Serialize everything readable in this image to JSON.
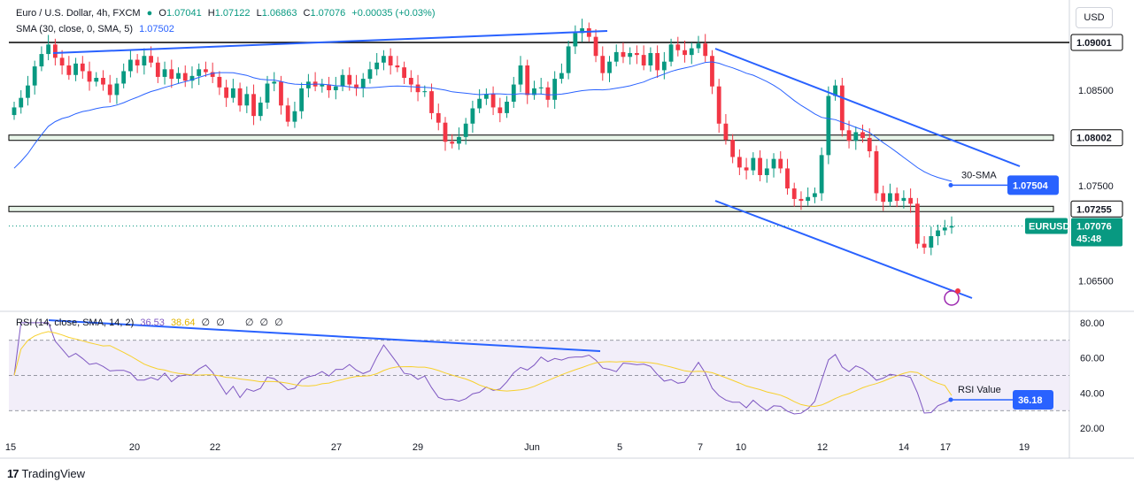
{
  "header": {
    "symbol": "Euro / U.S. Dollar, 4h, FXCM",
    "ohlc": {
      "o_label": "O",
      "o": "1.07041",
      "h_label": "H",
      "h": "1.07122",
      "l_label": "L",
      "l": "1.06863",
      "c_label": "C",
      "c": "1.07076",
      "change": "+0.00035 (+0.03%)"
    },
    "sma_label": "SMA (30, close, 0, SMA, 5)",
    "sma_value": "1.07502",
    "rsi_label": "RSI (14, close, SMA, 14, 2)",
    "rsi_value": "36.53",
    "rsi_ma_value": "38.64",
    "rsi_extra": [
      "∅",
      "∅",
      "∅",
      "∅",
      "∅"
    ]
  },
  "currency_button": "USD",
  "price_axis": {
    "ticks": [
      "1.08500",
      "1.07500",
      "1.06500"
    ],
    "tick_values": [
      1.085,
      1.075,
      1.065
    ],
    "level_tags": [
      {
        "label": "1.09001",
        "value": 1.09001
      },
      {
        "label": "1.08002",
        "value": 1.08002
      },
      {
        "label": "1.07255",
        "value": 1.07255
      }
    ],
    "symbol_tag": "EURUSD",
    "last_price": "1.07076",
    "countdown": "45:48"
  },
  "rsi_axis": {
    "ticks": [
      "80.00",
      "60.00",
      "40.00",
      "20.00"
    ],
    "tick_values": [
      80,
      60,
      40,
      20
    ]
  },
  "time_axis": {
    "ticks": [
      "15",
      "20",
      "22",
      "27",
      "29",
      "Jun",
      "5",
      "7",
      "10",
      "12",
      "14",
      "17",
      "19"
    ]
  },
  "annotations": {
    "sma_callout_label": "30-SMA",
    "sma_callout_value": "1.07504",
    "rsi_callout_label": "RSI Value",
    "rsi_callout_value": "36.18"
  },
  "branding": "TradingView",
  "colors": {
    "up": "#089981",
    "down": "#f23645",
    "sma": "#2962ff",
    "rsi": "#7e57c2",
    "rsi_ma": "#f7d02c",
    "trendline": "#2962ff",
    "level": "#000000"
  },
  "chart_data": [
    {
      "type": "candlestick",
      "title": "Euro / U.S. Dollar, 4h, FXCM",
      "ylim": [
        1.062,
        1.094
      ],
      "levels": [
        1.09001,
        1.08002,
        1.07255
      ],
      "closes": [
        1.0832,
        1.0842,
        1.0855,
        1.0875,
        1.0888,
        1.0898,
        1.0884,
        1.0876,
        1.0866,
        1.0878,
        1.087,
        1.0859,
        1.0863,
        1.0856,
        1.0845,
        1.0857,
        1.087,
        1.0882,
        1.0876,
        1.0886,
        1.0879,
        1.0864,
        1.0872,
        1.0862,
        1.0868,
        1.086,
        1.0865,
        1.0872,
        1.0869,
        1.0864,
        1.0853,
        1.0842,
        1.0852,
        1.0834,
        1.0846,
        1.0823,
        1.0837,
        1.0857,
        1.0859,
        1.0834,
        1.0817,
        1.0828,
        1.0852,
        1.0859,
        1.0854,
        1.0856,
        1.085,
        1.0854,
        1.0866,
        1.0856,
        1.0852,
        1.0862,
        1.0872,
        1.0879,
        1.0886,
        1.0876,
        1.0874,
        1.0863,
        1.0856,
        1.0848,
        1.0849,
        1.0826,
        1.0816,
        1.0796,
        1.0794,
        1.0801,
        1.0815,
        1.0831,
        1.0841,
        1.0846,
        1.0832,
        1.0826,
        1.0838,
        1.0856,
        1.0876,
        1.0845,
        1.0852,
        1.0853,
        1.084,
        1.0862,
        1.0868,
        1.0896,
        1.091,
        1.0915,
        1.0906,
        1.0886,
        1.0868,
        1.088,
        1.089,
        1.0885,
        1.0889,
        1.0887,
        1.0876,
        1.0889,
        1.0871,
        1.088,
        1.0898,
        1.0892,
        1.0887,
        1.0894,
        1.0899,
        1.0886,
        1.0854,
        1.0815,
        1.0798,
        1.078,
        1.0769,
        1.0766,
        1.0779,
        1.0761,
        1.0768,
        1.0778,
        1.0768,
        1.0747,
        1.0736,
        1.0734,
        1.0738,
        1.0742,
        1.0782,
        1.0844,
        1.0855,
        1.0808,
        1.0797,
        1.0806,
        1.08,
        1.0786,
        1.0742,
        1.0733,
        1.0742,
        1.0734,
        1.0737,
        1.0731,
        1.0689,
        1.0685,
        1.0697,
        1.0703,
        1.0706,
        1.07076
      ],
      "sma_30": "drawn as overlay; last value 1.07502"
    },
    {
      "type": "line",
      "title": "RSI (14, close, SMA, 14, 2)",
      "ylim": [
        15,
        85
      ],
      "bands": [
        30,
        50,
        70
      ],
      "series": [
        {
          "name": "RSI",
          "last": 36.53
        },
        {
          "name": "RSI MA",
          "last": 38.64
        }
      ]
    }
  ]
}
